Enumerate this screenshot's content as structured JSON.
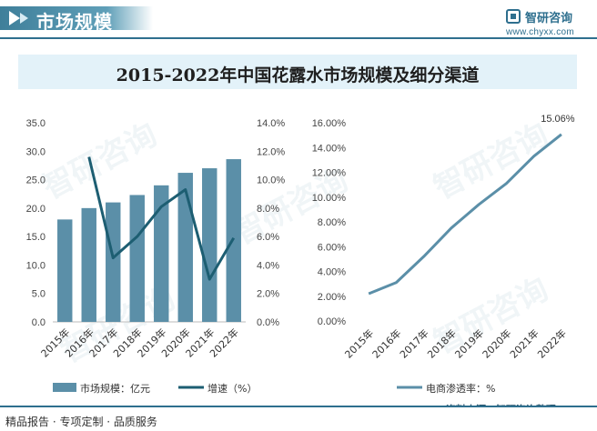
{
  "header": {
    "title": "市场规模",
    "logo_name": "智研咨询",
    "logo_url": "www.chyxx.com"
  },
  "chart_title": "2015-2022年中国花露水市场规模及细分渠道",
  "watermark": "智研咨询",
  "chart_data": [
    {
      "type": "bar+line",
      "categories": [
        "2015年",
        "2016年",
        "2017年",
        "2018年",
        "2019年",
        "2020年",
        "2021年",
        "2022年"
      ],
      "series": [
        {
          "name": "市场规模：亿元",
          "type": "bar",
          "axis": "left",
          "values": [
            18.0,
            20.0,
            21.0,
            22.3,
            24.0,
            26.2,
            27.0,
            28.6
          ]
        },
        {
          "name": "增速（%）",
          "type": "line",
          "axis": "right",
          "values": [
            null,
            11.6,
            4.5,
            6.0,
            8.1,
            9.3,
            3.0,
            5.9
          ]
        }
      ],
      "y_left": {
        "min": 0,
        "max": 35,
        "ticks": [
          "0.0",
          "5.0",
          "10.0",
          "15.0",
          "20.0",
          "25.0",
          "30.0",
          "35.0"
        ]
      },
      "y_right": {
        "min": 0,
        "max": 14,
        "ticks": [
          "0.0%",
          "2.0%",
          "4.0%",
          "6.0%",
          "8.0%",
          "10.0%",
          "12.0%",
          "14.0%"
        ]
      },
      "legend": [
        "市场规模：亿元",
        "增速（%）"
      ],
      "colors": {
        "bar": "#5b8fa8",
        "line": "#1d5e72"
      }
    },
    {
      "type": "line",
      "categories": [
        "2015年",
        "2016年",
        "2017年",
        "2018年",
        "2019年",
        "2020年",
        "2021年",
        "2022年"
      ],
      "series": [
        {
          "name": "电商渗透率：%",
          "values": [
            2.2,
            3.1,
            5.2,
            7.5,
            9.4,
            11.1,
            13.3,
            15.06
          ]
        }
      ],
      "y": {
        "min": 0,
        "max": 16,
        "ticks": [
          "0.00%",
          "2.00%",
          "4.00%",
          "6.00%",
          "8.00%",
          "10.00%",
          "12.00%",
          "14.00%",
          "16.00%"
        ]
      },
      "annotation": "15.06%",
      "legend": [
        "电商渗透率：%"
      ],
      "colors": {
        "line": "#5b8fa8"
      }
    }
  ],
  "footer": {
    "left": "精品报告 · 专项定制 · 品质服务",
    "source": "资料来源：智研咨询整理"
  }
}
